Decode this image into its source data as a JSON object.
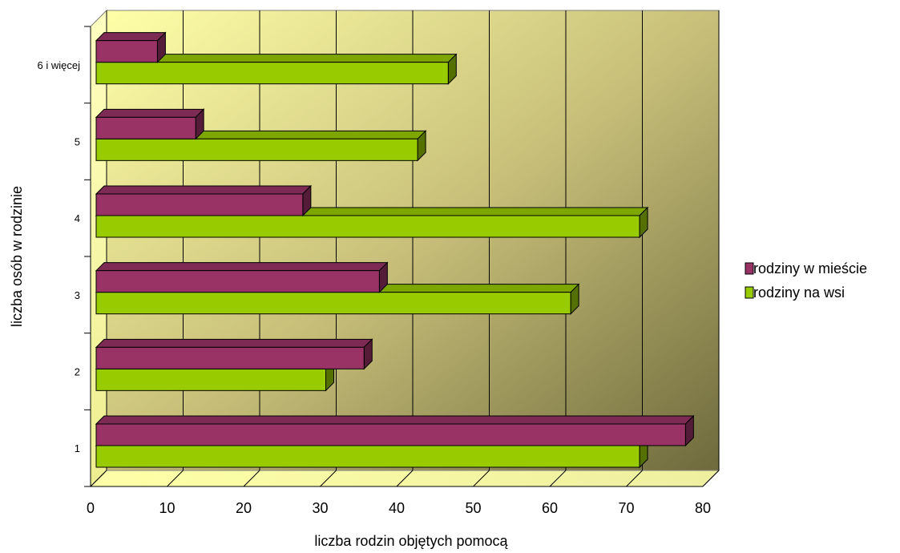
{
  "chart_data": {
    "type": "bar",
    "orientation": "horizontal",
    "three_d": true,
    "categories": [
      "1",
      "2",
      "3",
      "4",
      "5",
      "6 i więcej"
    ],
    "series": [
      {
        "name": "rodziny w mieście",
        "color": "#993366",
        "values": [
          77,
          35,
          37,
          27,
          13,
          8
        ]
      },
      {
        "name": "rodziny na wsi",
        "color": "#99cc00",
        "values": [
          71,
          30,
          62,
          71,
          42,
          46
        ]
      }
    ],
    "xlabel": "liczba rodzin objętych pomocą",
    "ylabel": "liczba osób w rodzinie",
    "xlim": [
      0,
      80
    ],
    "xticks": [
      "0",
      "10",
      "20",
      "30",
      "40",
      "50",
      "60",
      "70",
      "80"
    ],
    "grid": true,
    "legend_position": "right",
    "background_gradient": [
      "#ffffa8",
      "#6e6a3c"
    ]
  }
}
